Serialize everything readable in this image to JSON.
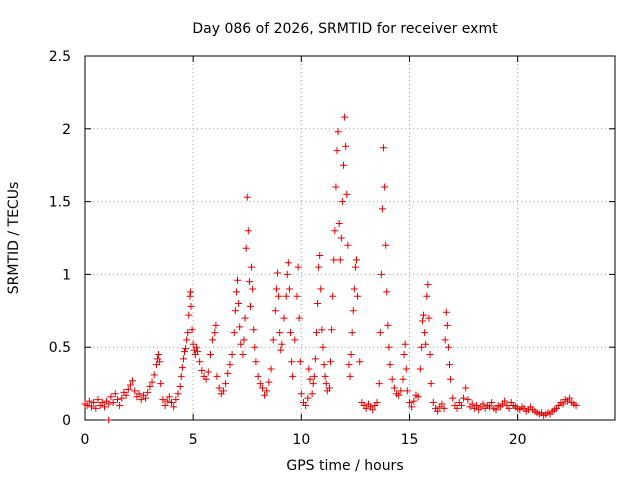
{
  "chart_data": {
    "type": "scatter",
    "title": "Day 086 of 2026, SRMTID for receiver exmt",
    "xlabel": "GPS time / hours",
    "ylabel": "SRMTID / TECUs",
    "xlim": [
      0,
      24.5
    ],
    "ylim": [
      0,
      2.5
    ],
    "x_ticks": [
      0,
      5,
      10,
      15,
      20
    ],
    "y_ticks": [
      0,
      0.5,
      1,
      1.5,
      2,
      2.5
    ],
    "x_tick_labels": [
      "0",
      "5",
      "10",
      "15",
      "20"
    ],
    "y_tick_labels": [
      "0",
      "0.5",
      "1",
      "1.5",
      "2",
      "2.5"
    ],
    "grid": true,
    "marker": "plus",
    "color": "#e00000",
    "series": [
      {
        "name": "SRMTID",
        "points": [
          [
            0.0,
            0.11
          ],
          [
            0.1,
            0.1
          ],
          [
            0.2,
            0.13
          ],
          [
            0.3,
            0.09
          ],
          [
            0.4,
            0.12
          ],
          [
            0.5,
            0.08
          ],
          [
            0.6,
            0.14
          ],
          [
            0.7,
            0.1
          ],
          [
            0.8,
            0.12
          ],
          [
            0.9,
            0.09
          ],
          [
            1.0,
            0.13
          ],
          [
            1.1,
            0.11
          ],
          [
            1.2,
            0.16
          ],
          [
            1.3,
            0.12
          ],
          [
            1.4,
            0.18
          ],
          [
            1.5,
            0.14
          ],
          [
            1.6,
            0.1
          ],
          [
            1.7,
            0.15
          ],
          [
            1.8,
            0.19
          ],
          [
            1.9,
            0.17
          ],
          [
            2.0,
            0.21
          ],
          [
            2.1,
            0.24
          ],
          [
            2.2,
            0.27
          ],
          [
            2.3,
            0.2
          ],
          [
            2.4,
            0.16
          ],
          [
            2.5,
            0.18
          ],
          [
            2.6,
            0.14
          ],
          [
            2.7,
            0.17
          ],
          [
            2.8,
            0.15
          ],
          [
            2.9,
            0.19
          ],
          [
            3.0,
            0.23
          ],
          [
            3.1,
            0.26
          ],
          [
            3.2,
            0.31
          ],
          [
            3.3,
            0.38
          ],
          [
            3.35,
            0.42
          ],
          [
            3.4,
            0.45
          ],
          [
            3.45,
            0.4
          ],
          [
            3.5,
            0.25
          ],
          [
            3.6,
            0.14
          ],
          [
            3.7,
            0.1
          ],
          [
            3.8,
            0.13
          ],
          [
            3.9,
            0.16
          ],
          [
            4.0,
            0.12
          ],
          [
            4.1,
            0.09
          ],
          [
            4.2,
            0.14
          ],
          [
            4.3,
            0.18
          ],
          [
            4.4,
            0.23
          ],
          [
            4.45,
            0.3
          ],
          [
            4.5,
            0.36
          ],
          [
            4.55,
            0.42
          ],
          [
            4.6,
            0.47
          ],
          [
            4.65,
            0.49
          ],
          [
            4.7,
            0.55
          ],
          [
            4.75,
            0.6
          ],
          [
            4.8,
            0.72
          ],
          [
            4.85,
            0.85
          ],
          [
            4.88,
            0.88
          ],
          [
            4.9,
            0.78
          ],
          [
            4.95,
            0.62
          ],
          [
            5.0,
            0.52
          ],
          [
            5.05,
            0.48
          ],
          [
            5.1,
            0.45
          ],
          [
            5.15,
            0.5
          ],
          [
            5.2,
            0.47
          ],
          [
            5.3,
            0.4
          ],
          [
            5.4,
            0.34
          ],
          [
            5.5,
            0.3
          ],
          [
            5.6,
            0.28
          ],
          [
            5.7,
            0.33
          ],
          [
            5.8,
            0.45
          ],
          [
            5.9,
            0.55
          ],
          [
            6.0,
            0.6
          ],
          [
            6.05,
            0.65
          ],
          [
            6.1,
            0.3
          ],
          [
            6.2,
            0.22
          ],
          [
            6.3,
            0.18
          ],
          [
            6.4,
            0.2
          ],
          [
            6.5,
            0.25
          ],
          [
            6.6,
            0.32
          ],
          [
            6.7,
            0.38
          ],
          [
            6.8,
            0.45
          ],
          [
            6.9,
            0.6
          ],
          [
            6.95,
            0.75
          ],
          [
            7.0,
            0.88
          ],
          [
            7.05,
            0.96
          ],
          [
            7.1,
            0.8
          ],
          [
            7.15,
            0.64
          ],
          [
            7.2,
            0.52
          ],
          [
            7.3,
            0.45
          ],
          [
            7.35,
            0.55
          ],
          [
            7.4,
            0.7
          ],
          [
            7.45,
            1.18
          ],
          [
            7.5,
            1.53
          ],
          [
            7.55,
            1.3
          ],
          [
            7.6,
            0.95
          ],
          [
            7.65,
            0.78
          ],
          [
            7.7,
            1.05
          ],
          [
            7.75,
            0.9
          ],
          [
            7.8,
            0.62
          ],
          [
            7.85,
            0.5
          ],
          [
            7.9,
            0.4
          ],
          [
            8.0,
            0.3
          ],
          [
            8.1,
            0.25
          ],
          [
            8.2,
            0.22
          ],
          [
            8.3,
            0.17
          ],
          [
            8.4,
            0.2
          ],
          [
            8.5,
            0.26
          ],
          [
            8.6,
            0.35
          ],
          [
            8.7,
            0.55
          ],
          [
            8.8,
            0.75
          ],
          [
            8.85,
            0.9
          ],
          [
            8.9,
            1.01
          ],
          [
            8.95,
            0.85
          ],
          [
            9.0,
            0.6
          ],
          [
            9.05,
            0.48
          ],
          [
            9.1,
            0.52
          ],
          [
            9.2,
            0.7
          ],
          [
            9.3,
            0.85
          ],
          [
            9.35,
            1.0
          ],
          [
            9.4,
            1.08
          ],
          [
            9.45,
            0.9
          ],
          [
            9.5,
            0.6
          ],
          [
            9.55,
            0.4
          ],
          [
            9.6,
            0.3
          ],
          [
            9.7,
            0.55
          ],
          [
            9.8,
            0.85
          ],
          [
            9.85,
            1.05
          ],
          [
            9.9,
            0.7
          ],
          [
            9.95,
            0.4
          ],
          [
            10.0,
            0.18
          ],
          [
            10.1,
            0.12
          ],
          [
            10.2,
            0.1
          ],
          [
            10.3,
            0.15
          ],
          [
            10.35,
            0.35
          ],
          [
            10.4,
            0.28
          ],
          [
            10.5,
            0.18
          ],
          [
            10.55,
            0.25
          ],
          [
            10.6,
            0.3
          ],
          [
            10.65,
            0.42
          ],
          [
            10.7,
            0.6
          ],
          [
            10.75,
            0.8
          ],
          [
            10.8,
            1.05
          ],
          [
            10.85,
            1.13
          ],
          [
            10.9,
            0.9
          ],
          [
            10.95,
            0.62
          ],
          [
            11.0,
            0.5
          ],
          [
            11.05,
            0.38
          ],
          [
            11.1,
            0.3
          ],
          [
            11.15,
            0.25
          ],
          [
            11.2,
            0.2
          ],
          [
            11.3,
            0.22
          ],
          [
            11.35,
            0.4
          ],
          [
            11.4,
            0.62
          ],
          [
            11.45,
            0.85
          ],
          [
            11.5,
            1.1
          ],
          [
            11.55,
            1.3
          ],
          [
            11.6,
            1.6
          ],
          [
            11.65,
            1.85
          ],
          [
            11.7,
            1.98
          ],
          [
            11.75,
            1.35
          ],
          [
            11.8,
            1.1
          ],
          [
            11.85,
            1.25
          ],
          [
            11.9,
            1.5
          ],
          [
            11.95,
            1.75
          ],
          [
            12.0,
            2.08
          ],
          [
            12.05,
            1.88
          ],
          [
            12.1,
            1.55
          ],
          [
            12.15,
            1.2
          ],
          [
            12.2,
            0.38
          ],
          [
            12.25,
            0.3
          ],
          [
            12.3,
            0.45
          ],
          [
            12.35,
            0.6
          ],
          [
            12.4,
            0.75
          ],
          [
            12.45,
            0.9
          ],
          [
            12.5,
            1.05
          ],
          [
            12.55,
            1.1
          ],
          [
            12.6,
            0.85
          ],
          [
            12.7,
            0.4
          ],
          [
            12.8,
            0.12
          ],
          [
            12.9,
            0.1
          ],
          [
            13.0,
            0.08
          ],
          [
            13.1,
            0.11
          ],
          [
            13.2,
            0.09
          ],
          [
            13.3,
            0.07
          ],
          [
            13.4,
            0.1
          ],
          [
            13.5,
            0.12
          ],
          [
            13.6,
            0.25
          ],
          [
            13.65,
            0.6
          ],
          [
            13.7,
            1.0
          ],
          [
            13.75,
            1.45
          ],
          [
            13.8,
            1.87
          ],
          [
            13.85,
            1.6
          ],
          [
            13.9,
            1.2
          ],
          [
            13.95,
            0.88
          ],
          [
            14.0,
            0.65
          ],
          [
            14.05,
            0.5
          ],
          [
            14.1,
            0.38
          ],
          [
            14.2,
            0.28
          ],
          [
            14.3,
            0.22
          ],
          [
            14.4,
            0.18
          ],
          [
            14.5,
            0.17
          ],
          [
            14.6,
            0.2
          ],
          [
            14.7,
            0.28
          ],
          [
            14.75,
            0.45
          ],
          [
            14.8,
            0.52
          ],
          [
            14.85,
            0.35
          ],
          [
            14.9,
            0.2
          ],
          [
            15.0,
            0.12
          ],
          [
            15.1,
            0.09
          ],
          [
            15.2,
            0.13
          ],
          [
            15.3,
            0.17
          ],
          [
            15.4,
            0.16
          ],
          [
            15.5,
            0.35
          ],
          [
            15.55,
            0.5
          ],
          [
            15.6,
            0.68
          ],
          [
            15.65,
            0.72
          ],
          [
            15.7,
            0.6
          ],
          [
            15.75,
            0.52
          ],
          [
            15.8,
            0.85
          ],
          [
            15.85,
            0.93
          ],
          [
            15.9,
            0.7
          ],
          [
            15.95,
            0.45
          ],
          [
            16.0,
            0.25
          ],
          [
            16.1,
            0.12
          ],
          [
            16.2,
            0.08
          ],
          [
            16.3,
            0.06
          ],
          [
            16.4,
            0.09
          ],
          [
            16.5,
            0.11
          ],
          [
            16.6,
            0.08
          ],
          [
            16.65,
            0.55
          ],
          [
            16.7,
            0.74
          ],
          [
            16.75,
            0.65
          ],
          [
            16.8,
            0.5
          ],
          [
            16.85,
            0.38
          ],
          [
            16.9,
            0.28
          ],
          [
            17.0,
            0.15
          ],
          [
            17.1,
            0.1
          ],
          [
            17.2,
            0.08
          ],
          [
            17.3,
            0.12
          ],
          [
            17.4,
            0.1
          ],
          [
            17.5,
            0.15
          ],
          [
            17.6,
            0.22
          ],
          [
            17.7,
            0.14
          ],
          [
            17.8,
            0.09
          ],
          [
            17.9,
            0.11
          ],
          [
            18.0,
            0.08
          ],
          [
            18.1,
            0.1
          ],
          [
            18.2,
            0.07
          ],
          [
            18.3,
            0.09
          ],
          [
            18.4,
            0.11
          ],
          [
            18.5,
            0.08
          ],
          [
            18.6,
            0.1
          ],
          [
            18.7,
            0.09
          ],
          [
            18.8,
            0.12
          ],
          [
            18.9,
            0.08
          ],
          [
            19.0,
            0.07
          ],
          [
            19.1,
            0.1
          ],
          [
            19.2,
            0.09
          ],
          [
            19.3,
            0.11
          ],
          [
            19.4,
            0.13
          ],
          [
            19.5,
            0.1
          ],
          [
            19.6,
            0.08
          ],
          [
            19.7,
            0.12
          ],
          [
            19.8,
            0.1
          ],
          [
            19.9,
            0.09
          ],
          [
            20.0,
            0.08
          ],
          [
            20.1,
            0.07
          ],
          [
            20.2,
            0.09
          ],
          [
            20.3,
            0.08
          ],
          [
            20.4,
            0.06
          ],
          [
            20.5,
            0.07
          ],
          [
            20.6,
            0.09
          ],
          [
            20.7,
            0.07
          ],
          [
            20.8,
            0.06
          ],
          [
            20.9,
            0.05
          ],
          [
            21.0,
            0.04
          ],
          [
            21.1,
            0.05
          ],
          [
            21.2,
            0.03
          ],
          [
            21.3,
            0.04
          ],
          [
            21.4,
            0.05
          ],
          [
            21.5,
            0.04
          ],
          [
            21.6,
            0.06
          ],
          [
            21.7,
            0.07
          ],
          [
            21.8,
            0.08
          ],
          [
            21.9,
            0.1
          ],
          [
            22.0,
            0.12
          ],
          [
            22.1,
            0.11
          ],
          [
            22.2,
            0.14
          ],
          [
            22.3,
            0.13
          ],
          [
            22.4,
            0.15
          ],
          [
            22.5,
            0.12
          ],
          [
            22.6,
            0.11
          ],
          [
            22.7,
            0.1
          ],
          [
            1.1,
            0.0
          ]
        ]
      }
    ]
  }
}
